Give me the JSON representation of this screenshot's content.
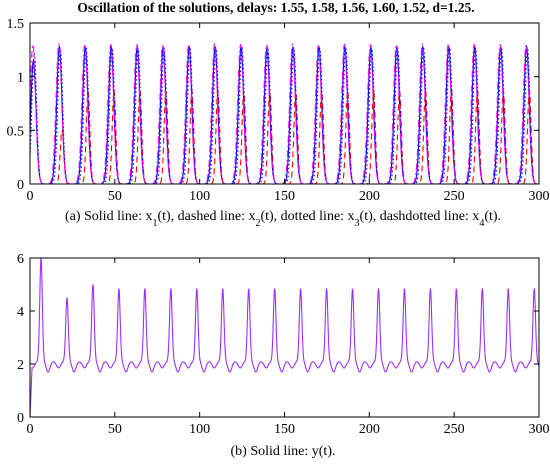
{
  "figure": {
    "title": "Oscillation of the solutions, delays: 1.55, 1.58, 1.56, 1.60, 1.52, d=1.25.",
    "caption_a": {
      "prefix": "(a) Solid line: x",
      "s1": "1",
      "mid1": "(t), dashed line: x",
      "s2": "2",
      "mid2": "(t), dotted line: x",
      "s3": "3",
      "mid3": "(t), dashdotted line: x",
      "s4": "4",
      "suffix": "(t)."
    },
    "caption_b": "(b) Solid line: y(t)."
  },
  "colors": {
    "x1": "#0000ff",
    "x2": "#ff0000",
    "x3": "#0000ff",
    "x4": "#ff00ff",
    "y": "#9b30ff",
    "axes": "#000000"
  },
  "chart_data": [
    {
      "type": "line",
      "title": "Oscillation of the solutions, delays: 1.55, 1.58, 1.56, 1.60, 1.52, d=1.25.",
      "xlabel": "",
      "ylabel": "",
      "xlim": [
        0,
        300
      ],
      "ylim": [
        0,
        1.5
      ],
      "xticks": [
        0,
        50,
        100,
        150,
        200,
        250,
        300
      ],
      "yticks": [
        0,
        0.5,
        1,
        1.5
      ],
      "xtick_labels": [
        "0",
        "50",
        "100",
        "150",
        "200",
        "250",
        "300"
      ],
      "ytick_labels": [
        "0",
        "0.5",
        "1",
        "1.5"
      ],
      "grid": false,
      "pulse_period": 15.3,
      "first_pulse": 2,
      "series": [
        {
          "key": "x1",
          "style": "solid",
          "peak": 1.28,
          "peaks_first": [
            1.15,
            1.28
          ]
        },
        {
          "key": "x2",
          "style": "dashed",
          "peak": 0.87,
          "peaks_first": [
            0.0,
            0.5,
            0.86
          ]
        },
        {
          "key": "x3",
          "style": "dotted",
          "peak": 1.27,
          "peaks_first": [
            1.22,
            1.27
          ]
        },
        {
          "key": "x4",
          "style": "dashdot",
          "peak": 1.3,
          "peaks_first": [
            1.3,
            1.3
          ]
        }
      ]
    },
    {
      "type": "line",
      "title": "",
      "xlabel": "",
      "ylabel": "",
      "xlim": [
        0,
        300
      ],
      "ylim": [
        0,
        6
      ],
      "xticks": [
        0,
        50,
        100,
        150,
        200,
        250,
        300
      ],
      "yticks": [
        0,
        2,
        4,
        6
      ],
      "xtick_labels": [
        "0",
        "50",
        "100",
        "150",
        "200",
        "250",
        "300"
      ],
      "ytick_labels": [
        "0",
        "2",
        "4",
        "6"
      ],
      "grid": false,
      "series": [
        {
          "key": "y",
          "style": "solid",
          "baseline": 2.1,
          "trough": 1.7,
          "peak": 4.85,
          "peaks_first": [
            6.0,
            4.5,
            5.0
          ],
          "pulse_period": 15.3,
          "first_peak": 6.5
        }
      ]
    }
  ]
}
